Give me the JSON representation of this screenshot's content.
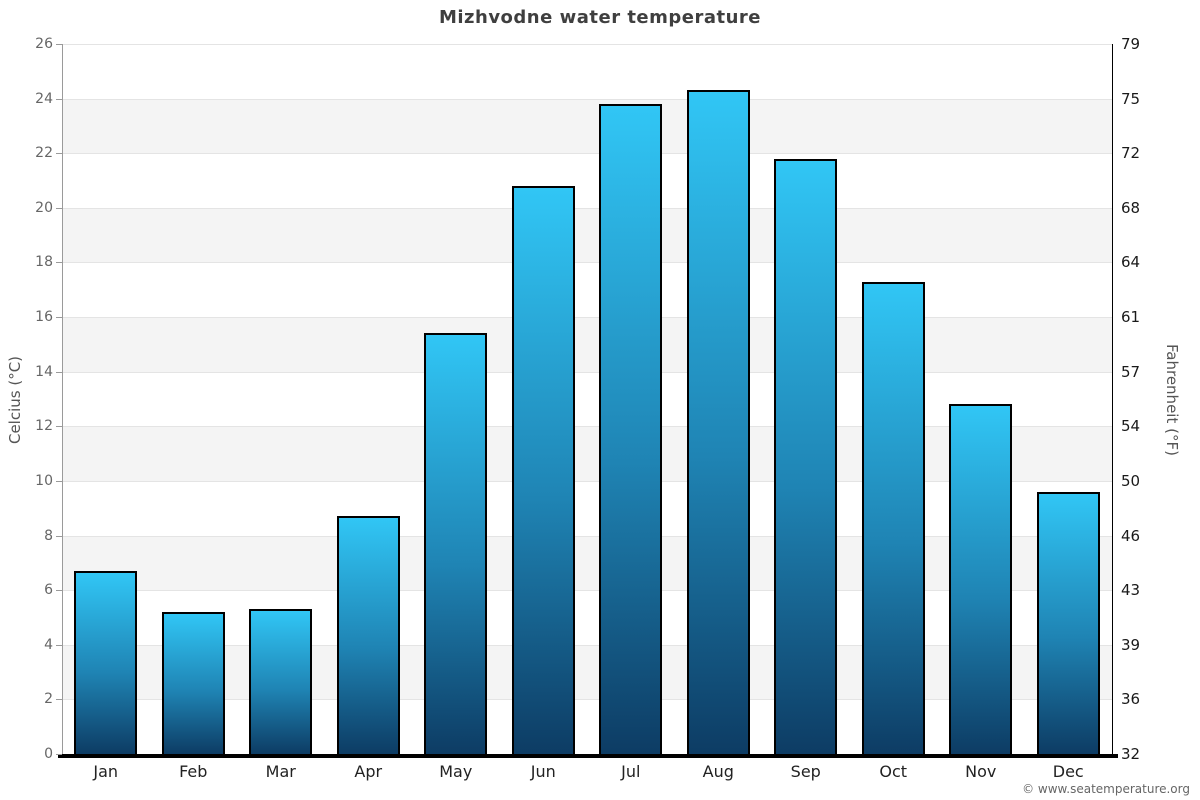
{
  "title": "Mizhvodne water temperature",
  "axes": {
    "left_title": "Celcius (°C)",
    "right_title": "Fahrenheit (°F)"
  },
  "footer": "© www.seatemperature.org",
  "chart_data": {
    "type": "bar",
    "title": "Mizhvodne water temperature",
    "categories": [
      "Jan",
      "Feb",
      "Mar",
      "Apr",
      "May",
      "Jun",
      "Jul",
      "Aug",
      "Sep",
      "Oct",
      "Nov",
      "Dec"
    ],
    "series": [
      {
        "name": "Water temperature (°C)",
        "values": [
          6.7,
          5.2,
          5.3,
          8.7,
          15.4,
          20.8,
          23.8,
          24.3,
          21.8,
          17.3,
          12.8,
          9.6
        ]
      }
    ],
    "xlabel": "",
    "ylabel_left": "Celcius (°C)",
    "ylabel_right": "Fahrenheit (°F)",
    "ylim": [
      0,
      26
    ],
    "yticks_celsius": [
      0,
      2,
      4,
      6,
      8,
      10,
      12,
      14,
      16,
      18,
      20,
      22,
      24,
      26
    ],
    "yticks_fahrenheit": [
      32,
      36,
      39,
      43,
      46,
      50,
      54,
      57,
      61,
      64,
      68,
      72,
      75,
      79
    ],
    "legend_position": "none",
    "grid": "horizontal gridlines with alternating shaded bands",
    "colors": {
      "bar_gradient_top": "#31c6f5",
      "bar_gradient_bottom": "#0d3c64",
      "bar_border": "#000000",
      "band_fill": "#f4f4f4",
      "gridline": "#e4e4e4",
      "left_axis_line": "#9a9a9a",
      "right_axis_line": "#000000",
      "baseline": "#000000"
    }
  }
}
